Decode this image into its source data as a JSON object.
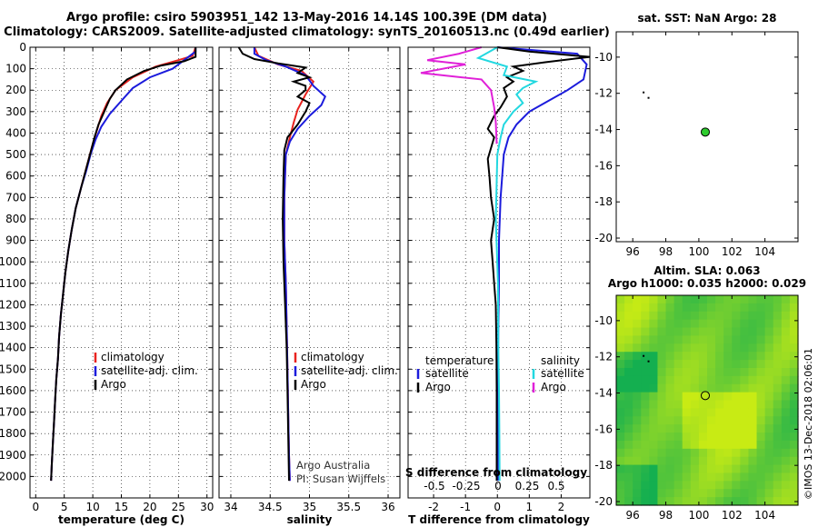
{
  "header": {
    "line1": "Argo profile: csiro 5903951_142 13-May-2016 14.14S 100.39E (DM data)",
    "line2": "Climatology: CARS2009. Satellite-adjusted climatology: synTS_20160513.nc (0.49d earlier)"
  },
  "colors": {
    "climatology": "#e8231f",
    "satellite": "#1b1bdc",
    "argo": "#000000",
    "sat_salinity": "#22d8e0",
    "argo_salinity": "#e020d8",
    "float_dot": "#2ecc2e"
  },
  "depth_ticks": [
    "0",
    "100",
    "200",
    "300",
    "400",
    "500",
    "600",
    "700",
    "800",
    "900",
    "1000",
    "1100",
    "1200",
    "1300",
    "1400",
    "1500",
    "1600",
    "1700",
    "1800",
    "1900",
    "2000"
  ],
  "chart_data": [
    {
      "type": "line",
      "id": "temperature",
      "xlabel": "temperature (deg C)",
      "xlim": [
        -1,
        31
      ],
      "ylim": [
        2100,
        0
      ],
      "xticks": [
        0,
        5,
        10,
        15,
        20,
        25,
        30
      ],
      "xtick_labels": [
        "0",
        "5",
        "10",
        "15",
        "20",
        "25",
        "30"
      ],
      "legend": [
        "climatology",
        "satellite-adj. clim.",
        "Argo"
      ],
      "series": [
        {
          "name": "climatology",
          "color": "#e8231f",
          "points": [
            [
              28,
              0
            ],
            [
              27.5,
              40
            ],
            [
              25,
              60
            ],
            [
              21,
              90
            ],
            [
              17,
              140
            ],
            [
              14,
              200
            ],
            [
              12.5,
              260
            ],
            [
              11.5,
              320
            ],
            [
              10.8,
              380
            ],
            [
              10,
              450
            ],
            [
              9,
              550
            ],
            [
              8,
              650
            ],
            [
              7,
              750
            ],
            [
              6.3,
              850
            ],
            [
              5.7,
              950
            ],
            [
              5.2,
              1050
            ],
            [
              4.8,
              1150
            ],
            [
              4.4,
              1250
            ],
            [
              4.1,
              1350
            ],
            [
              3.9,
              1450
            ],
            [
              3.6,
              1550
            ],
            [
              3.4,
              1650
            ],
            [
              3.2,
              1750
            ],
            [
              3.0,
              1850
            ],
            [
              2.8,
              1950
            ],
            [
              2.7,
              2020
            ]
          ]
        },
        {
          "name": "satellite-adj. clim.",
          "color": "#1b1bdc",
          "points": [
            [
              28,
              0
            ],
            [
              28,
              20
            ],
            [
              26,
              60
            ],
            [
              24,
              100
            ],
            [
              20,
              140
            ],
            [
              17,
              190
            ],
            [
              15,
              250
            ],
            [
              13,
              310
            ],
            [
              11.5,
              370
            ],
            [
              10.5,
              430
            ],
            [
              9.6,
              500
            ],
            [
              8.8,
              580
            ],
            [
              8,
              650
            ],
            [
              7,
              750
            ],
            [
              6.3,
              850
            ],
            [
              5.7,
              950
            ],
            [
              5.2,
              1050
            ],
            [
              4.8,
              1150
            ],
            [
              4.4,
              1250
            ],
            [
              4.1,
              1350
            ],
            [
              3.9,
              1450
            ],
            [
              3.6,
              1550
            ],
            [
              3.4,
              1650
            ],
            [
              3.2,
              1750
            ],
            [
              3.0,
              1850
            ],
            [
              2.8,
              1950
            ],
            [
              2.7,
              2020
            ]
          ]
        },
        {
          "name": "Argo",
          "color": "#000000",
          "points": [
            [
              28,
              0
            ],
            [
              28,
              45
            ],
            [
              26,
              65
            ],
            [
              22,
              85
            ],
            [
              19,
              110
            ],
            [
              16,
              150
            ],
            [
              14,
              200
            ],
            [
              13,
              240
            ],
            [
              12,
              300
            ],
            [
              11,
              360
            ],
            [
              10.3,
              420
            ],
            [
              9.5,
              500
            ],
            [
              8.7,
              580
            ],
            [
              7.9,
              660
            ],
            [
              7,
              750
            ],
            [
              6.3,
              850
            ],
            [
              5.7,
              950
            ],
            [
              5.2,
              1050
            ],
            [
              4.8,
              1150
            ],
            [
              4.4,
              1250
            ],
            [
              4.1,
              1350
            ],
            [
              3.9,
              1450
            ],
            [
              3.6,
              1550
            ],
            [
              3.4,
              1650
            ],
            [
              3.2,
              1750
            ],
            [
              3.0,
              1850
            ],
            [
              2.8,
              1950
            ],
            [
              2.7,
              2020
            ]
          ]
        }
      ]
    },
    {
      "type": "line",
      "id": "salinity",
      "xlabel": "salinity",
      "xlim": [
        33.85,
        36.15
      ],
      "ylim": [
        2100,
        0
      ],
      "xticks": [
        34,
        34.5,
        35,
        35.5,
        36
      ],
      "xtick_labels": [
        "34",
        "34.5",
        "35",
        "35.5",
        "36"
      ],
      "legend": [
        "climatology",
        "satellite-adj. clim.",
        "Argo"
      ],
      "series": [
        {
          "name": "climatology",
          "color": "#e8231f",
          "points": [
            [
              34.3,
              0
            ],
            [
              34.35,
              40
            ],
            [
              34.6,
              80
            ],
            [
              34.9,
              110
            ],
            [
              35.05,
              160
            ],
            [
              34.95,
              220
            ],
            [
              34.85,
              290
            ],
            [
              34.8,
              350
            ],
            [
              34.75,
              420
            ],
            [
              34.7,
              500
            ],
            [
              34.68,
              700
            ],
            [
              34.68,
              900
            ],
            [
              34.7,
              1100
            ],
            [
              34.71,
              1300
            ],
            [
              34.72,
              1500
            ],
            [
              34.73,
              1700
            ],
            [
              34.74,
              1900
            ],
            [
              34.75,
              2020
            ]
          ]
        },
        {
          "name": "satellite-adj. clim.",
          "color": "#1b1bdc",
          "points": [
            [
              34.3,
              0
            ],
            [
              34.3,
              30
            ],
            [
              34.45,
              60
            ],
            [
              34.7,
              90
            ],
            [
              34.95,
              130
            ],
            [
              35.05,
              180
            ],
            [
              35.2,
              230
            ],
            [
              35.15,
              270
            ],
            [
              35.0,
              320
            ],
            [
              34.85,
              380
            ],
            [
              34.75,
              440
            ],
            [
              34.7,
              500
            ],
            [
              34.68,
              700
            ],
            [
              34.68,
              900
            ],
            [
              34.7,
              1100
            ],
            [
              34.71,
              1300
            ],
            [
              34.72,
              1500
            ],
            [
              34.73,
              1700
            ],
            [
              34.74,
              1900
            ],
            [
              34.75,
              2020
            ]
          ]
        },
        {
          "name": "Argo",
          "color": "#000000",
          "points": [
            [
              34.1,
              0
            ],
            [
              34.15,
              30
            ],
            [
              34.3,
              55
            ],
            [
              34.6,
              75
            ],
            [
              34.95,
              95
            ],
            [
              34.85,
              120
            ],
            [
              35.0,
              140
            ],
            [
              34.8,
              160
            ],
            [
              34.95,
              180
            ],
            [
              34.95,
              200
            ],
            [
              34.85,
              230
            ],
            [
              35.0,
              260
            ],
            [
              34.95,
              300
            ],
            [
              34.85,
              360
            ],
            [
              34.72,
              420
            ],
            [
              34.68,
              480
            ],
            [
              34.67,
              600
            ],
            [
              34.66,
              800
            ],
            [
              34.67,
              1000
            ],
            [
              34.69,
              1200
            ],
            [
              34.71,
              1400
            ],
            [
              34.72,
              1600
            ],
            [
              34.73,
              1800
            ],
            [
              34.74,
              2020
            ]
          ]
        }
      ],
      "credit1": "Argo Australia",
      "credit2": "PI: Susan Wijffels"
    },
    {
      "type": "line",
      "id": "difference",
      "xlabel": "T difference from climatology",
      "xlim": [
        -2.8,
        2.9
      ],
      "ylim": [
        2100,
        0
      ],
      "xticks": [
        -2,
        -1,
        0,
        1,
        2
      ],
      "xtick_labels": [
        "-2",
        "-1",
        "0",
        "1",
        "2"
      ],
      "secondary_xlabel": "S difference from climatology",
      "secondary_xtick_labels": [
        "-0.5",
        "-0.25",
        "0",
        "0.25",
        "0.5"
      ],
      "legend_temperature_title": "temperature",
      "legend_salinity_title": "salinity",
      "legend": [
        "satellite",
        "Argo",
        "satellite",
        "Argo"
      ],
      "series": [
        {
          "name": "satellite T",
          "color": "#1b1bdc",
          "points": [
            [
              0,
              0
            ],
            [
              2.5,
              30
            ],
            [
              2.8,
              80
            ],
            [
              2.7,
              150
            ],
            [
              2.2,
              200
            ],
            [
              1.6,
              250
            ],
            [
              1,
              300
            ],
            [
              0.6,
              360
            ],
            [
              0.35,
              420
            ],
            [
              0.2,
              500
            ],
            [
              0.1,
              700
            ],
            [
              0.05,
              900
            ],
            [
              0.05,
              1100
            ],
            [
              0.03,
              1300
            ],
            [
              0.02,
              1500
            ],
            [
              0.02,
              1700
            ],
            [
              0.02,
              1900
            ],
            [
              0.02,
              2020
            ]
          ]
        },
        {
          "name": "Argo T",
          "color": "#000000",
          "points": [
            [
              0,
              0
            ],
            [
              1,
              20
            ],
            [
              2.9,
              45
            ],
            [
              1.5,
              70
            ],
            [
              0.5,
              90
            ],
            [
              0.8,
              110
            ],
            [
              0.3,
              140
            ],
            [
              0.5,
              160
            ],
            [
              0.2,
              190
            ],
            [
              0.3,
              230
            ],
            [
              0.1,
              280
            ],
            [
              -0.1,
              320
            ],
            [
              -0.3,
              380
            ],
            [
              -0.1,
              420
            ],
            [
              -0.2,
              470
            ],
            [
              -0.3,
              520
            ],
            [
              -0.25,
              600
            ],
            [
              -0.2,
              700
            ],
            [
              -0.1,
              800
            ],
            [
              -0.2,
              900
            ],
            [
              -0.15,
              1000
            ],
            [
              -0.1,
              1100
            ],
            [
              -0.05,
              1200
            ],
            [
              -0.03,
              1400
            ],
            [
              -0.02,
              1600
            ],
            [
              -0.02,
              1800
            ],
            [
              -0.02,
              2020
            ]
          ]
        },
        {
          "name": "satellite S",
          "color": "#22d8e0",
          "points": [
            [
              0,
              0
            ],
            [
              -0.6,
              50
            ],
            [
              0.3,
              90
            ],
            [
              0.2,
              130
            ],
            [
              1.2,
              160
            ],
            [
              0.8,
              190
            ],
            [
              0.6,
              220
            ],
            [
              0.8,
              260
            ],
            [
              0.5,
              300
            ],
            [
              0.2,
              360
            ],
            [
              0.1,
              420
            ],
            [
              0,
              500
            ],
            [
              -0.05,
              800
            ],
            [
              0.02,
              1100
            ],
            [
              0.03,
              1400
            ],
            [
              0.05,
              1600
            ],
            [
              0.06,
              1800
            ],
            [
              0.07,
              2020
            ]
          ]
        },
        {
          "name": "Argo S",
          "color": "#e020d8",
          "points": [
            [
              -0.5,
              0
            ],
            [
              -1.2,
              30
            ],
            [
              -2.2,
              60
            ],
            [
              -1,
              80
            ],
            [
              -2.4,
              120
            ],
            [
              -0.5,
              150
            ],
            [
              -0.2,
              200
            ],
            [
              -0.1,
              280
            ],
            [
              -0.05,
              350
            ],
            [
              -0.02,
              450
            ]
          ]
        }
      ]
    },
    {
      "type": "scatter",
      "id": "sst_map",
      "title": "sat. SST: NaN Argo: 28",
      "xlim": [
        95,
        106
      ],
      "ylim": [
        -20.2,
        -8.6
      ],
      "xticks": [
        96,
        98,
        100,
        102,
        104
      ],
      "xtick_labels": [
        "96",
        "98",
        "100",
        "102",
        "104"
      ],
      "yticks": [
        -10,
        -12,
        -14,
        -16,
        -18,
        -20
      ],
      "ytick_labels": [
        "-10",
        "-12",
        "-14",
        "-16",
        "-18",
        "-20"
      ],
      "float_position": [
        100.39,
        -14.14
      ]
    },
    {
      "type": "heatmap",
      "id": "sla_map",
      "title_line1": "Altim. SLA: 0.063",
      "title_line2": "Argo h1000: 0.035 h2000: 0.029",
      "xlim": [
        95,
        106
      ],
      "ylim": [
        -20.2,
        -8.6
      ],
      "xticks": [
        96,
        98,
        100,
        102,
        104
      ],
      "xtick_labels": [
        "96",
        "98",
        "100",
        "102",
        "104"
      ],
      "yticks": [
        -10,
        -12,
        -14,
        -16,
        -18,
        -20
      ],
      "ytick_labels": [
        "-10",
        "-12",
        "-14",
        "-16",
        "-18",
        "-20"
      ],
      "float_position": [
        100.39,
        -14.14
      ],
      "side_credit": "©IMOS 13-Dec-2018 02:06:01"
    }
  ]
}
